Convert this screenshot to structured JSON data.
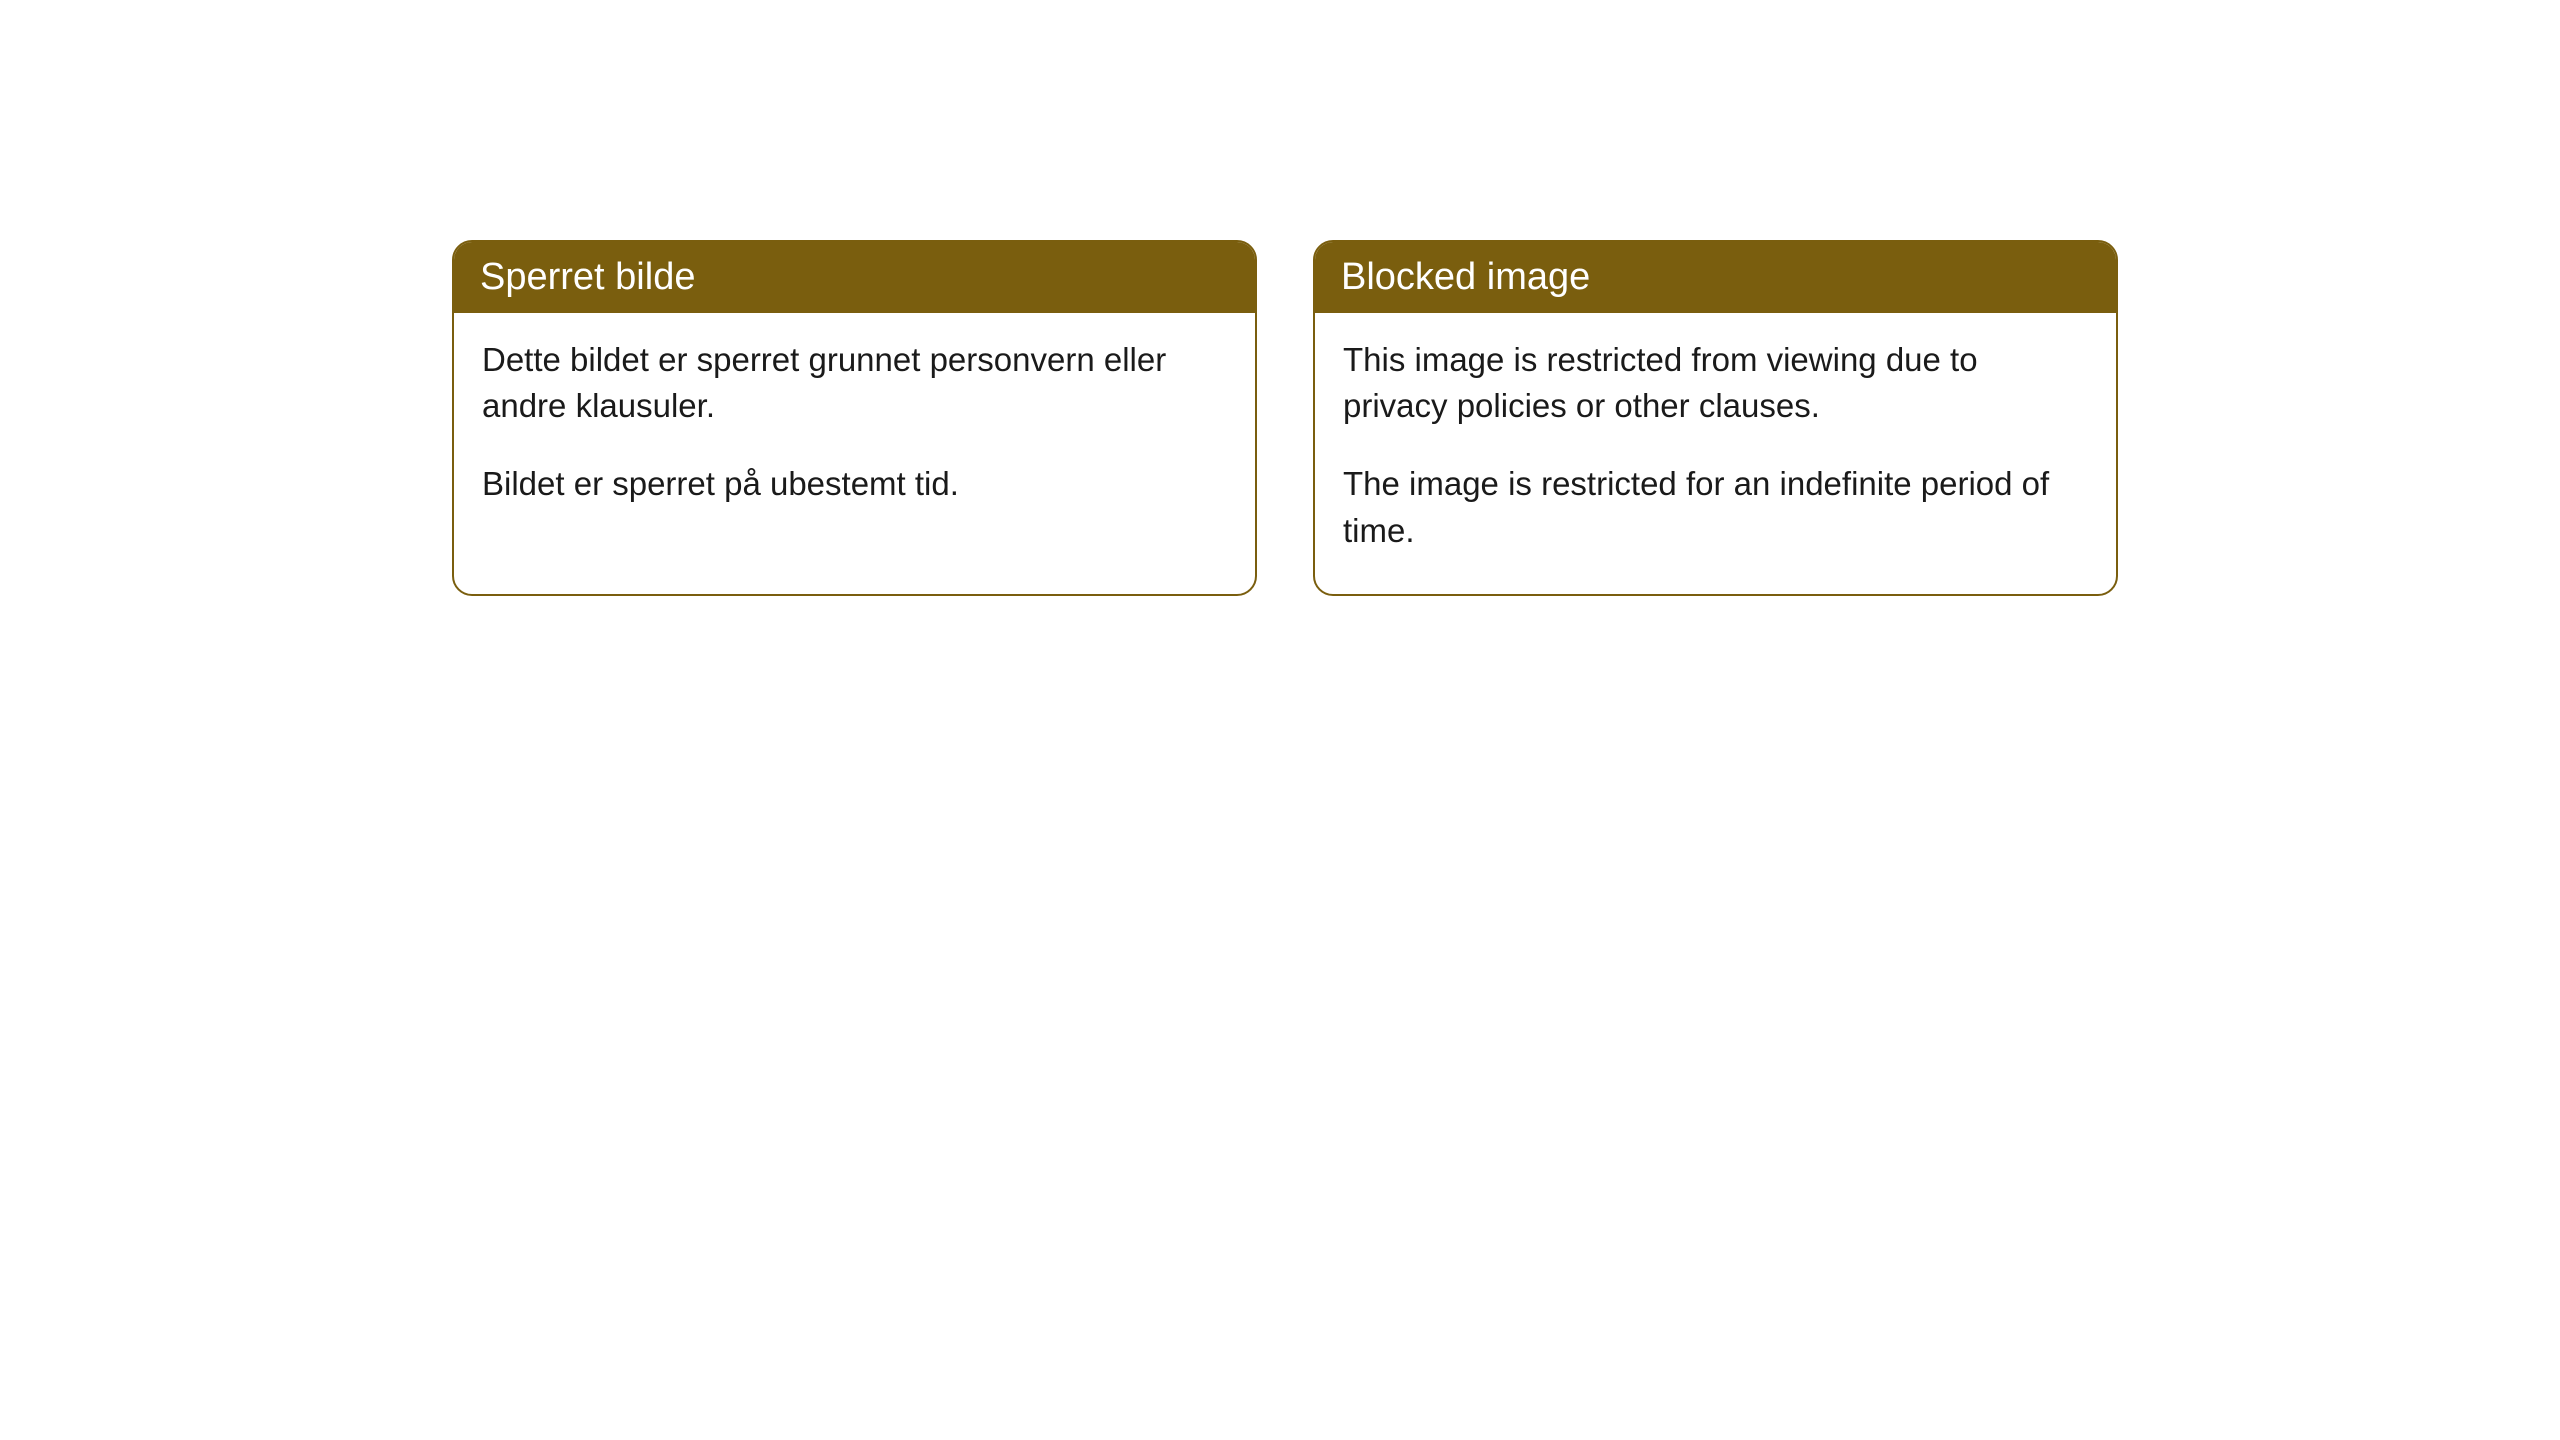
{
  "cards": [
    {
      "title": "Sperret bilde",
      "paragraph1": "Dette bildet er sperret grunnet personvern eller andre klausuler.",
      "paragraph2": "Bildet er sperret på ubestemt tid."
    },
    {
      "title": "Blocked image",
      "paragraph1": "This image is restricted from viewing due to privacy policies or other clauses.",
      "paragraph2": "The image is restricted for an indefinite period of time."
    }
  ],
  "styling": {
    "card_border_color": "#7a5e0e",
    "card_header_bg": "#7a5e0e",
    "card_header_text_color": "#ffffff",
    "card_body_bg": "#ffffff",
    "card_body_text_color": "#1a1a1a",
    "page_bg": "#ffffff",
    "border_radius": 20,
    "title_fontsize": 38,
    "body_fontsize": 33
  }
}
